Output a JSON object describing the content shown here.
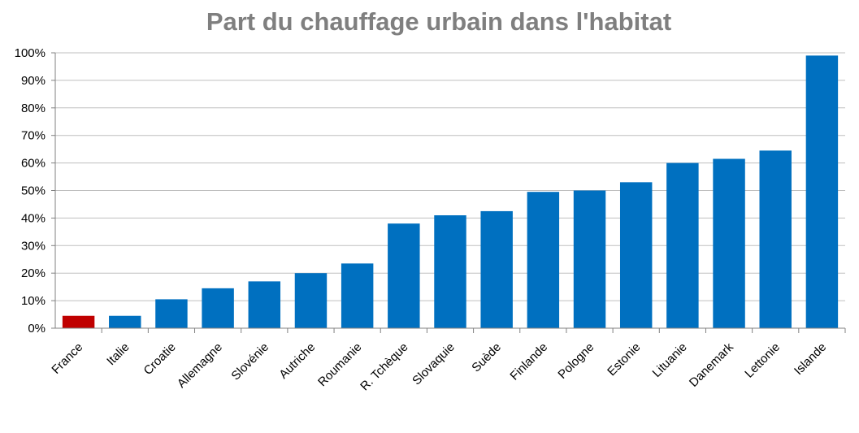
{
  "chart_data": {
    "type": "bar",
    "title": "Part du chauffage urbain dans l'habitat",
    "xlabel": "",
    "ylabel": "",
    "ylim": [
      0,
      100
    ],
    "yticks": [
      0,
      10,
      20,
      30,
      40,
      50,
      60,
      70,
      80,
      90,
      100
    ],
    "ytick_labels": [
      "0%",
      "10%",
      "20%",
      "30%",
      "40%",
      "50%",
      "60%",
      "70%",
      "80%",
      "90%",
      "100%"
    ],
    "grid": true,
    "legend": "none",
    "categories": [
      "France",
      "Italie",
      "Croatie",
      "Allemagne",
      "Slovénie",
      "Autriche",
      "Roumanie",
      "R. Tchèque",
      "Slovaquie",
      "Suède",
      "Finlande",
      "Pologne",
      "Estonie",
      "Lituanie",
      "Danemark",
      "Lettonie",
      "Islande"
    ],
    "values": [
      4.5,
      4.5,
      10.5,
      14.5,
      17,
      20,
      23.5,
      38,
      41,
      42.5,
      49.5,
      50,
      53,
      60,
      61.5,
      64.5,
      99
    ],
    "colors": {
      "default_bar": "#0070c0",
      "highlight_bar": "#c00000",
      "highlight_category": "France",
      "title": "#7f7f7f"
    }
  }
}
